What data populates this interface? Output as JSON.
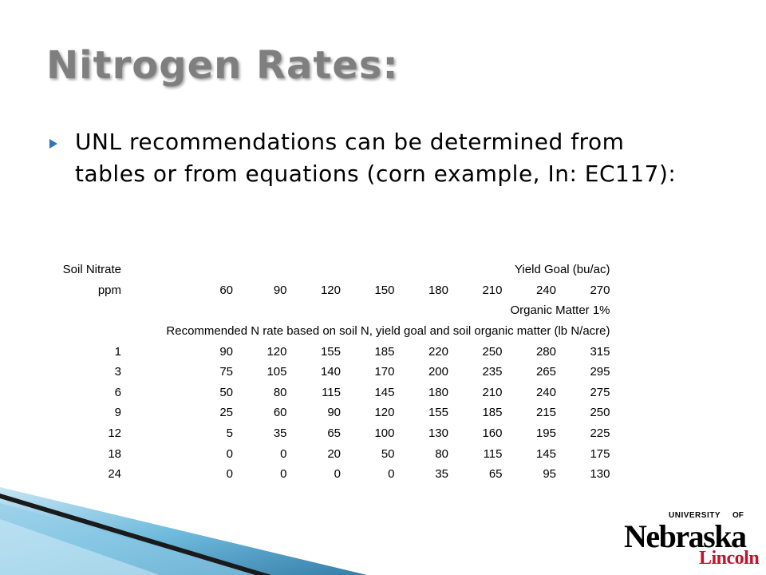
{
  "slide": {
    "title": "Nitrogen Rates:",
    "bullet_text": "UNL recommendations can be determined from tables or from equations (corn example, In: EC117):",
    "bullet_icon": "triangle-bullet-icon",
    "bullet_color": "#2e75b6"
  },
  "table": {
    "header_label1": "Soil Nitrate",
    "header_label2": "ppm",
    "yield_goal_label": "Yield Goal (bu/ac)",
    "yield_goals": [
      "60",
      "90",
      "120",
      "150",
      "180",
      "210",
      "240",
      "270"
    ],
    "organic_matter_label": "Organic Matter 1%",
    "recommendation_label": "Recommended N rate based on soil N, yield goal and soil organic matter (lb N/acre)",
    "rows": [
      {
        "soil": "1",
        "values": [
          "90",
          "120",
          "155",
          "185",
          "220",
          "250",
          "280",
          "315"
        ]
      },
      {
        "soil": "3",
        "values": [
          "75",
          "105",
          "140",
          "170",
          "200",
          "235",
          "265",
          "295"
        ]
      },
      {
        "soil": "6",
        "values": [
          "50",
          "80",
          "115",
          "145",
          "180",
          "210",
          "240",
          "275"
        ]
      },
      {
        "soil": "9",
        "values": [
          "25",
          "60",
          "90",
          "120",
          "155",
          "185",
          "215",
          "250"
        ]
      },
      {
        "soil": "12",
        "values": [
          "5",
          "35",
          "65",
          "100",
          "130",
          "160",
          "195",
          "225"
        ]
      },
      {
        "soil": "18",
        "values": [
          "0",
          "0",
          "20",
          "50",
          "80",
          "115",
          "145",
          "175"
        ]
      },
      {
        "soil": "24",
        "values": [
          "0",
          "0",
          "0",
          "0",
          "35",
          "65",
          "95",
          "130"
        ]
      }
    ]
  },
  "logo": {
    "university": "UNIVERSITY",
    "of": "OF",
    "nebraska": "Nebraska",
    "lincoln": "Lincoln",
    "lincoln_color": "#c8102e"
  }
}
